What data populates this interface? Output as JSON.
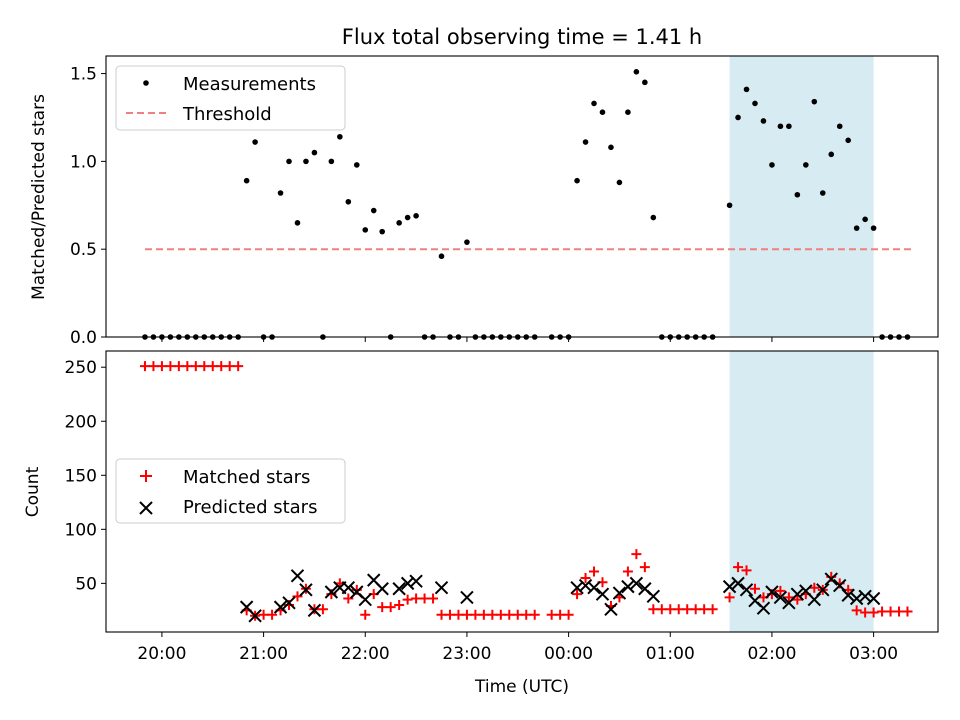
{
  "title": "Flux total observing time = 1.41 h",
  "colors": {
    "measurement": "#000000",
    "threshold": "#f08080",
    "matched": "#ff0000",
    "predicted": "#000000",
    "span": "#add8e6"
  },
  "chart_data": [
    {
      "type": "scatter",
      "ylabel": "Matched/Predicted stars",
      "ylim": [
        0,
        1.6
      ],
      "yticks": [
        0.0,
        0.5,
        1.0,
        1.5
      ],
      "ytick_labels": [
        "0.0",
        "0.5",
        "1.0",
        "1.5"
      ],
      "legend": {
        "position": "upper-left",
        "entries": [
          "Measurements",
          "Threshold"
        ]
      },
      "threshold": {
        "name": "Threshold",
        "value": 0.5,
        "x_start": "19:50",
        "x_end": "03:23"
      },
      "series": [
        {
          "name": "Measurements",
          "points": [
            [
              "19:50",
              0
            ],
            [
              "19:55",
              0
            ],
            [
              "20:00",
              0
            ],
            [
              "20:05",
              0
            ],
            [
              "20:10",
              0
            ],
            [
              "20:15",
              0
            ],
            [
              "20:20",
              0
            ],
            [
              "20:25",
              0
            ],
            [
              "20:30",
              0
            ],
            [
              "20:35",
              0
            ],
            [
              "20:40",
              0
            ],
            [
              "20:45",
              0
            ],
            [
              "20:50",
              0.89
            ],
            [
              "20:55",
              1.11
            ],
            [
              "21:00",
              0
            ],
            [
              "21:05",
              0
            ],
            [
              "21:10",
              0.82
            ],
            [
              "21:15",
              1.0
            ],
            [
              "21:20",
              0.65
            ],
            [
              "21:25",
              1.0
            ],
            [
              "21:30",
              1.05
            ],
            [
              "21:35",
              0
            ],
            [
              "21:40",
              1.0
            ],
            [
              "21:45",
              1.14
            ],
            [
              "21:50",
              0.77
            ],
            [
              "21:55",
              0.98
            ],
            [
              "22:00",
              0.61
            ],
            [
              "22:05",
              0.72
            ],
            [
              "22:10",
              0.6
            ],
            [
              "22:15",
              0
            ],
            [
              "22:20",
              0.65
            ],
            [
              "22:25",
              0.68
            ],
            [
              "22:30",
              0.69
            ],
            [
              "22:35",
              0
            ],
            [
              "22:40",
              0
            ],
            [
              "22:45",
              0.46
            ],
            [
              "22:50",
              0
            ],
            [
              "22:55",
              0
            ],
            [
              "23:00",
              0.54
            ],
            [
              "23:05",
              0
            ],
            [
              "23:10",
              0
            ],
            [
              "23:15",
              0
            ],
            [
              "23:20",
              0
            ],
            [
              "23:25",
              0
            ],
            [
              "23:30",
              0
            ],
            [
              "23:35",
              0
            ],
            [
              "23:40",
              0
            ],
            [
              "23:50",
              0
            ],
            [
              "23:55",
              0
            ],
            [
              "00:00",
              0
            ],
            [
              "00:05",
              0.89
            ],
            [
              "00:10",
              1.11
            ],
            [
              "00:15",
              1.33
            ],
            [
              "00:20",
              1.28
            ],
            [
              "00:25",
              1.08
            ],
            [
              "00:30",
              0.88
            ],
            [
              "00:35",
              1.28
            ],
            [
              "00:40",
              1.51
            ],
            [
              "00:45",
              1.45
            ],
            [
              "00:50",
              0.68
            ],
            [
              "00:55",
              0
            ],
            [
              "01:00",
              0
            ],
            [
              "01:05",
              0
            ],
            [
              "01:10",
              0
            ],
            [
              "01:15",
              0
            ],
            [
              "01:20",
              0
            ],
            [
              "01:25",
              0
            ],
            [
              "01:35",
              0.75
            ],
            [
              "01:40",
              1.25
            ],
            [
              "01:45",
              1.41
            ],
            [
              "01:50",
              1.33
            ],
            [
              "01:55",
              1.23
            ],
            [
              "02:00",
              0.98
            ],
            [
              "02:05",
              1.2
            ],
            [
              "02:10",
              1.2
            ],
            [
              "02:15",
              0.81
            ],
            [
              "02:20",
              0.98
            ],
            [
              "02:25",
              1.34
            ],
            [
              "02:30",
              0.82
            ],
            [
              "02:35",
              1.04
            ],
            [
              "02:40",
              1.2
            ],
            [
              "02:45",
              1.12
            ],
            [
              "02:50",
              0.62
            ],
            [
              "02:55",
              0.67
            ],
            [
              "03:00",
              0.62
            ],
            [
              "03:05",
              0
            ],
            [
              "03:10",
              0
            ],
            [
              "03:15",
              0
            ],
            [
              "03:20",
              0
            ]
          ]
        }
      ]
    },
    {
      "type": "scatter",
      "xlabel": "Time (UTC)",
      "ylabel": "Count",
      "ylim": [
        5,
        265
      ],
      "yticks": [
        50,
        100,
        150,
        200,
        250
      ],
      "ytick_labels": [
        "50",
        "100",
        "150",
        "200",
        "250"
      ],
      "xlim": [
        "19:27",
        "03:38"
      ],
      "xticks": [
        "20:00",
        "21:00",
        "22:00",
        "23:00",
        "00:00",
        "01:00",
        "02:00",
        "03:00"
      ],
      "xtick_labels": [
        "20:00",
        "21:00",
        "22:00",
        "23:00",
        "00:00",
        "01:00",
        "02:00",
        "03:00"
      ],
      "shaded_span": {
        "x_start": "01:35",
        "x_end": "03:00"
      },
      "legend": {
        "position": "center-left",
        "entries": [
          "Matched stars",
          "Predicted stars"
        ]
      },
      "series": [
        {
          "name": "Matched stars",
          "points": [
            [
              "19:50",
              251
            ],
            [
              "19:55",
              251
            ],
            [
              "20:00",
              251
            ],
            [
              "20:05",
              251
            ],
            [
              "20:10",
              251
            ],
            [
              "20:15",
              251
            ],
            [
              "20:20",
              251
            ],
            [
              "20:25",
              251
            ],
            [
              "20:30",
              251
            ],
            [
              "20:35",
              251
            ],
            [
              "20:40",
              251
            ],
            [
              "20:45",
              251
            ],
            [
              "20:50",
              25
            ],
            [
              "20:55",
              20
            ],
            [
              "21:00",
              21
            ],
            [
              "21:05",
              21
            ],
            [
              "21:10",
              25
            ],
            [
              "21:15",
              30
            ],
            [
              "21:20",
              38
            ],
            [
              "21:25",
              45
            ],
            [
              "21:30",
              26
            ],
            [
              "21:35",
              26
            ],
            [
              "21:40",
              40
            ],
            [
              "21:45",
              50
            ],
            [
              "21:50",
              36
            ],
            [
              "21:55",
              44
            ],
            [
              "22:00",
              21
            ],
            [
              "22:05",
              40
            ],
            [
              "22:10",
              28
            ],
            [
              "22:15",
              28
            ],
            [
              "22:20",
              30
            ],
            [
              "22:25",
              35
            ],
            [
              "22:30",
              36
            ],
            [
              "22:35",
              36
            ],
            [
              "22:40",
              36
            ],
            [
              "22:45",
              21
            ],
            [
              "22:50",
              21
            ],
            [
              "22:55",
              21
            ],
            [
              "23:00",
              21
            ],
            [
              "23:05",
              21
            ],
            [
              "23:10",
              21
            ],
            [
              "23:15",
              21
            ],
            [
              "23:20",
              21
            ],
            [
              "23:25",
              21
            ],
            [
              "23:30",
              21
            ],
            [
              "23:35",
              21
            ],
            [
              "23:40",
              21
            ],
            [
              "23:50",
              21
            ],
            [
              "23:55",
              21
            ],
            [
              "00:00",
              21
            ],
            [
              "00:05",
              40
            ],
            [
              "00:10",
              55
            ],
            [
              "00:15",
              61
            ],
            [
              "00:20",
              51
            ],
            [
              "00:25",
              29
            ],
            [
              "00:30",
              37
            ],
            [
              "00:35",
              61
            ],
            [
              "00:40",
              77
            ],
            [
              "00:45",
              65
            ],
            [
              "00:50",
              26
            ],
            [
              "00:55",
              26
            ],
            [
              "01:00",
              26
            ],
            [
              "01:05",
              26
            ],
            [
              "01:10",
              26
            ],
            [
              "01:15",
              26
            ],
            [
              "01:20",
              26
            ],
            [
              "01:25",
              26
            ],
            [
              "01:35",
              37
            ],
            [
              "01:40",
              65
            ],
            [
              "01:45",
              62
            ],
            [
              "01:50",
              45
            ],
            [
              "01:55",
              37
            ],
            [
              "02:00",
              40
            ],
            [
              "02:05",
              43
            ],
            [
              "02:10",
              37
            ],
            [
              "02:15",
              35
            ],
            [
              "02:20",
              40
            ],
            [
              "02:25",
              46
            ],
            [
              "02:30",
              44
            ],
            [
              "02:35",
              56
            ],
            [
              "02:40",
              50
            ],
            [
              "02:45",
              44
            ],
            [
              "02:50",
              25
            ],
            [
              "02:55",
              23
            ],
            [
              "03:00",
              23
            ],
            [
              "03:05",
              24
            ],
            [
              "03:10",
              24
            ],
            [
              "03:15",
              24
            ],
            [
              "03:20",
              24
            ]
          ]
        },
        {
          "name": "Predicted stars",
          "points": [
            [
              "20:50",
              28
            ],
            [
              "20:55",
              20
            ],
            [
              "21:10",
              28
            ],
            [
              "21:15",
              32
            ],
            [
              "21:20",
              57
            ],
            [
              "21:25",
              44
            ],
            [
              "21:30",
              25
            ],
            [
              "21:40",
              42
            ],
            [
              "21:45",
              46
            ],
            [
              "21:50",
              46
            ],
            [
              "21:55",
              42
            ],
            [
              "22:00",
              35
            ],
            [
              "22:05",
              53
            ],
            [
              "22:10",
              45
            ],
            [
              "22:20",
              45
            ],
            [
              "22:25",
              50
            ],
            [
              "22:30",
              52
            ],
            [
              "22:45",
              46
            ],
            [
              "23:00",
              37
            ],
            [
              "00:05",
              46
            ],
            [
              "00:10",
              48
            ],
            [
              "00:15",
              46
            ],
            [
              "00:20",
              40
            ],
            [
              "00:25",
              26
            ],
            [
              "00:30",
              41
            ],
            [
              "00:35",
              47
            ],
            [
              "00:40",
              50
            ],
            [
              "00:45",
              45
            ],
            [
              "00:50",
              38
            ],
            [
              "01:35",
              47
            ],
            [
              "01:40",
              50
            ],
            [
              "01:45",
              44
            ],
            [
              "01:50",
              34
            ],
            [
              "01:55",
              27
            ],
            [
              "02:00",
              42
            ],
            [
              "02:05",
              37
            ],
            [
              "02:10",
              32
            ],
            [
              "02:15",
              40
            ],
            [
              "02:20",
              43
            ],
            [
              "02:25",
              35
            ],
            [
              "02:30",
              44
            ],
            [
              "02:35",
              54
            ],
            [
              "02:40",
              48
            ],
            [
              "02:45",
              39
            ],
            [
              "02:50",
              36
            ],
            [
              "02:55",
              38
            ],
            [
              "03:00",
              36
            ]
          ]
        }
      ]
    }
  ]
}
